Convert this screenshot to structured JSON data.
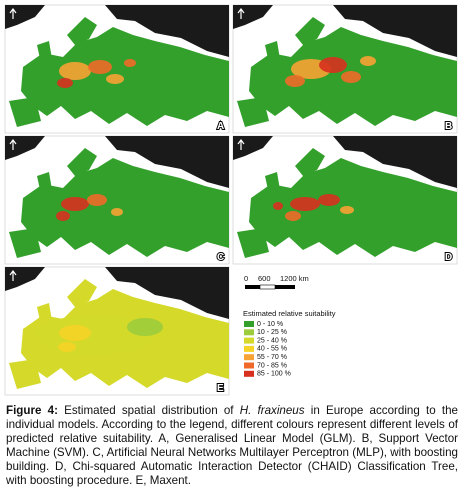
{
  "panels": [
    "A",
    "B",
    "C",
    "D",
    "E"
  ],
  "scale_bar": {
    "labels": [
      "0",
      "600",
      "1200 km"
    ]
  },
  "legend": {
    "title": "Estimated relative suitability",
    "items": [
      "0 - 10 %",
      "10 - 25 %",
      "25 - 40 %",
      "40 - 55 %",
      "55 - 70 %",
      "70 - 85 %",
      "85 - 100 %"
    ]
  },
  "caption": {
    "label": "Figure 4:",
    "text_before": "Estimated spatial distribution of",
    "species": "H. fraxineus",
    "text_after": "in Europe according to the individual models. According to the legend, different colours represent different levels of predicted relative suitability. A, Generalised Linear Model (GLM). B, Support Vector Machine (SVM). C, Artificial Neural Networks Multilayer Perceptron (MLP), with boosting building. D, Chi-squared Automatic Interaction Detector (CHAID) Classification Tree, with boosting procedure. E, Maxent."
  }
}
